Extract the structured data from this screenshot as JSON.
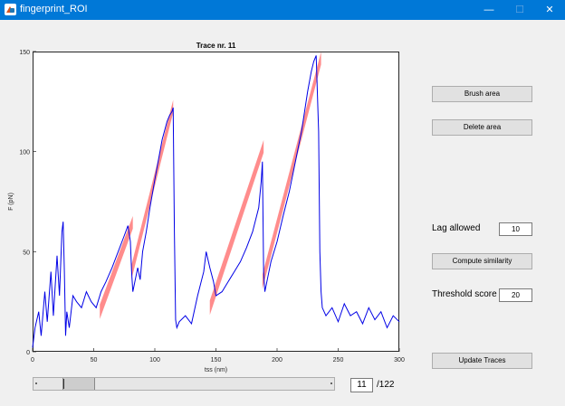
{
  "window": {
    "title": "fingerprint_ROI",
    "min_glyph": "—",
    "max_glyph": "☐",
    "close_glyph": "✕"
  },
  "controls": {
    "brush_label": "Brush area",
    "delete_label": "Delete area",
    "lag_label": "Lag allowed",
    "lag_value": "10",
    "compute_label": "Compute similarity",
    "threshold_label": "Threshold score",
    "threshold_value": "20",
    "update_label": "Update Traces",
    "trace_index": "11",
    "trace_total": "/122"
  },
  "slider": {
    "value": 11,
    "min": 1,
    "max": 122
  },
  "colors": {
    "trace": "#0000e6",
    "highlight": "#ff7f7f",
    "titlebar": "#0078d7"
  },
  "chart_data": {
    "type": "line",
    "title": "Trace nr. 11",
    "xlabel": "tss (nm)",
    "ylabel": "F (pN)",
    "xlim": [
      0,
      300
    ],
    "ylim": [
      0,
      150
    ],
    "xticks": [
      0,
      50,
      100,
      150,
      200,
      250,
      300
    ],
    "yticks": [
      0,
      50,
      100,
      150
    ],
    "series": [
      {
        "color": "#0000e6",
        "x": [
          0,
          2,
          5,
          7,
          10,
          12,
          15,
          17,
          20,
          22,
          24,
          25,
          26,
          27,
          28,
          30,
          33,
          36,
          40,
          44,
          48,
          52,
          56,
          60,
          65,
          70,
          75,
          78,
          80,
          81,
          82,
          84,
          86,
          88,
          90,
          93,
          96,
          100,
          103,
          106,
          110,
          112,
          114,
          115,
          116,
          117,
          118,
          120,
          125,
          130,
          135,
          140,
          142,
          145,
          148,
          150,
          155,
          160,
          165,
          170,
          175,
          180,
          185,
          187,
          188,
          189,
          190,
          192,
          195,
          200,
          205,
          210,
          215,
          220,
          225,
          228,
          230,
          232,
          234,
          235,
          236,
          237,
          240,
          245,
          250,
          255,
          260,
          265,
          270,
          275,
          280,
          285,
          290,
          295,
          300
        ],
        "y": [
          2,
          12,
          20,
          8,
          30,
          15,
          40,
          18,
          48,
          28,
          60,
          65,
          40,
          8,
          20,
          12,
          28,
          25,
          22,
          30,
          25,
          22,
          30,
          35,
          42,
          50,
          58,
          63,
          55,
          40,
          30,
          36,
          42,
          36,
          50,
          60,
          72,
          86,
          96,
          106,
          115,
          118,
          120,
          122,
          60,
          16,
          12,
          15,
          18,
          14,
          28,
          40,
          50,
          42,
          35,
          28,
          30,
          35,
          40,
          45,
          52,
          60,
          72,
          85,
          95,
          40,
          30,
          36,
          45,
          55,
          68,
          80,
          95,
          110,
          130,
          140,
          145,
          148,
          110,
          50,
          30,
          22,
          18,
          22,
          15,
          24,
          18,
          20,
          14,
          22,
          16,
          20,
          12,
          18,
          15
        ]
      }
    ],
    "highlights": [
      {
        "x": [
          55,
          82
        ],
        "y_start": 20,
        "y_end": 66
      },
      {
        "x": [
          81,
          115
        ],
        "y_start": 40,
        "y_end": 124
      },
      {
        "x": [
          145,
          189
        ],
        "y_start": 22,
        "y_end": 104
      },
      {
        "x": [
          188,
          236
        ],
        "y_start": 35,
        "y_end": 148
      }
    ]
  }
}
